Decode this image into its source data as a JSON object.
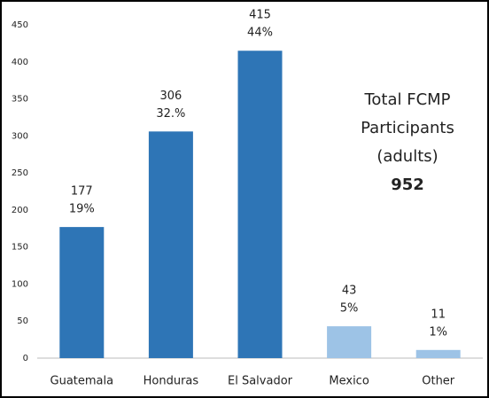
{
  "chart_data": {
    "type": "bar",
    "categories": [
      "Guatemala",
      "Honduras",
      "El Salvador",
      "Mexico",
      "Other"
    ],
    "values": [
      177,
      306,
      415,
      43,
      11
    ],
    "percent_labels": [
      "19%",
      "32.%",
      "44%",
      "5%",
      "1%"
    ],
    "colors": [
      "#2e75b6",
      "#2e75b6",
      "#2e75b6",
      "#9dc3e6",
      "#9dc3e6"
    ],
    "ylim": [
      0,
      450
    ],
    "yticks": [
      0,
      50,
      100,
      150,
      200,
      250,
      300,
      350,
      400,
      450
    ],
    "grid": false,
    "annotation": {
      "lines": [
        "Total FCMP",
        "Participants",
        "(adults)"
      ],
      "total": 952
    }
  }
}
